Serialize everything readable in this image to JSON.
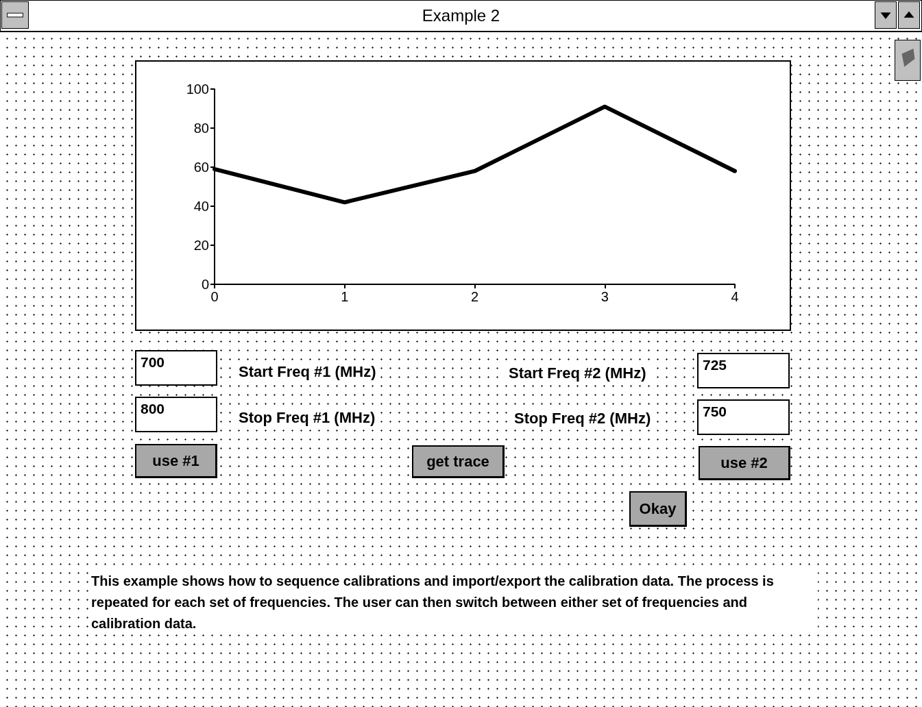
{
  "chart_data": {
    "type": "line",
    "title": "Example 2",
    "x": [
      0,
      1,
      2,
      3,
      4
    ],
    "series": [
      {
        "color": "#000000",
        "values": [
          59,
          42,
          58,
          91,
          58
        ]
      }
    ],
    "xlim": [
      0,
      4
    ],
    "xticks": [
      0,
      1,
      2,
      3,
      4
    ],
    "ylim": [
      0,
      100
    ],
    "yticks": [
      0,
      20,
      40,
      60,
      80,
      100
    ],
    "grid": false,
    "marker": "none",
    "line_style": "solid",
    "annotations": [
      "700",
      "Start Freq #1 (MHz)",
      "Start Freq #2 (MHz)",
      "725",
      "800",
      "Stop Freq #1 (MHz)",
      "Stop Freq #2 (MHz)",
      "750",
      "use #1",
      "get trace",
      "use #2",
      "Okay",
      "This example shows how to sequence calibrations and import/export the calibration data. The process is repeated for each set of frequencies.  The user can then switch between either set of frequencies and calibration data."
    ]
  }
}
